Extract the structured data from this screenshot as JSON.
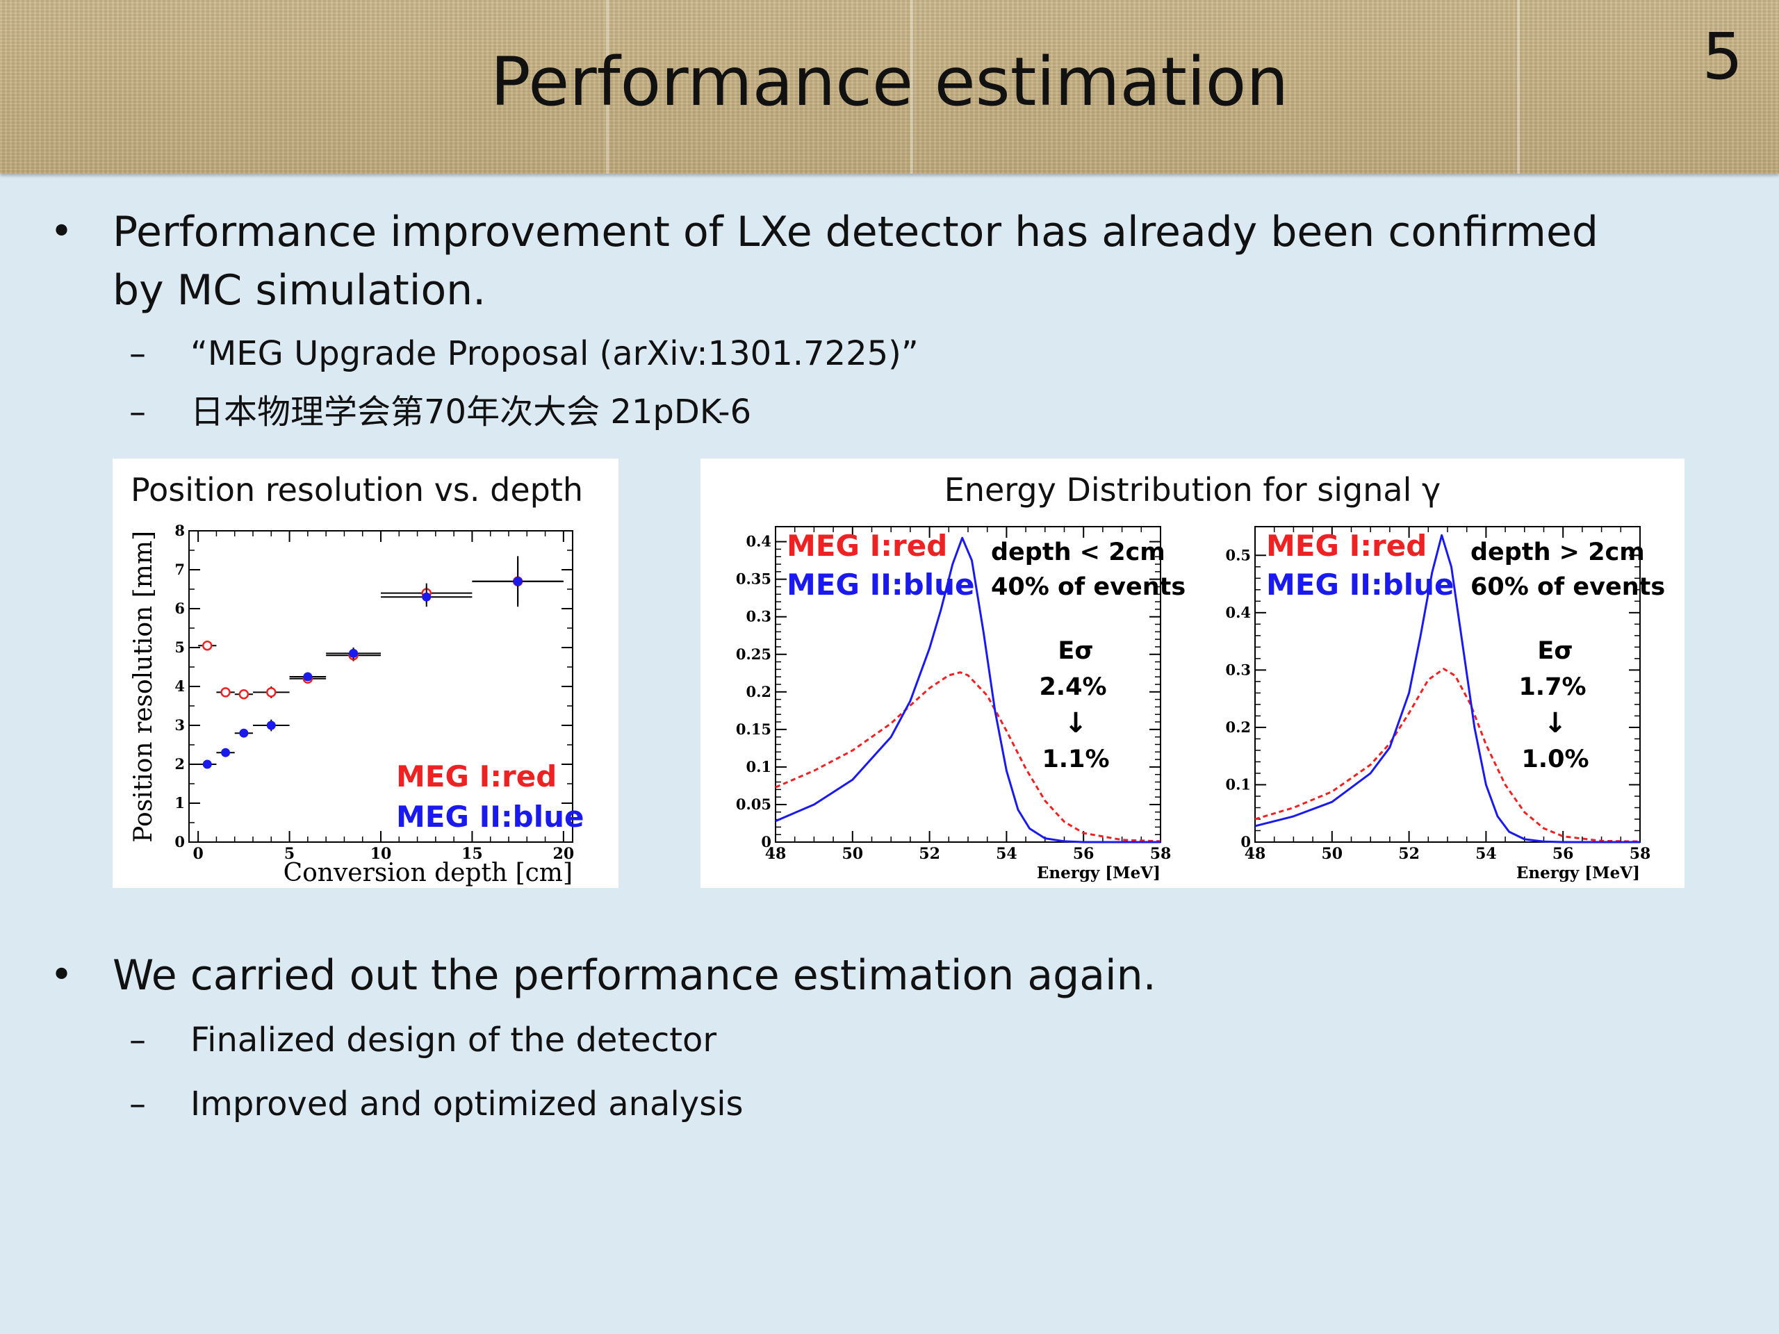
{
  "slide": {
    "title": "Performance estimation",
    "number": "5"
  },
  "bullets": [
    {
      "lines": [
        "Performance improvement of LXe detector has already been confirmed",
        "by MC simulation."
      ],
      "subs": [
        "“MEG Upgrade Proposal (arXiv:1301.7225)”",
        "日本物理学会第70年次大会 21pDK-6"
      ]
    },
    {
      "lines": [
        "We carried out the performance estimation again."
      ],
      "subs": [
        "Finalized design of the detector",
        "Improved and optimized analysis"
      ]
    }
  ],
  "colors": {
    "meg1": "#ee2222",
    "meg2": "#1a1aee",
    "header": "#c9b58a",
    "background": "#dbe9f2"
  },
  "panel_left_title": "Position resolution vs. depth",
  "panel_right_title": "Energy Distribution for signal γ",
  "chart_data": [
    {
      "type": "scatter",
      "title": "Position resolution vs. depth",
      "xlabel": "Conversion depth [cm]",
      "ylabel": "Position resolution [mm]",
      "xlim": [
        -0.5,
        20.5
      ],
      "ylim": [
        0,
        8
      ],
      "xticks": [
        0,
        5,
        10,
        15,
        20
      ],
      "yticks": [
        0,
        1,
        2,
        3,
        4,
        5,
        6,
        7,
        8
      ],
      "legend": [
        "MEG I:red",
        "MEG II:blue"
      ],
      "series": [
        {
          "name": "MEG I:red",
          "points": [
            {
              "x": 0.5,
              "y": 5.05,
              "xerr": 0.5,
              "yerr": 0.05
            },
            {
              "x": 1.5,
              "y": 3.85,
              "xerr": 0.5,
              "yerr": 0.05
            },
            {
              "x": 2.5,
              "y": 3.8,
              "xerr": 0.5,
              "yerr": 0.1
            },
            {
              "x": 4.0,
              "y": 3.85,
              "xerr": 1.0,
              "yerr": 0.15
            },
            {
              "x": 6.0,
              "y": 4.2,
              "xerr": 1.0,
              "yerr": 0.1
            },
            {
              "x": 8.5,
              "y": 4.8,
              "xerr": 1.5,
              "yerr": 0.15
            },
            {
              "x": 12.5,
              "y": 6.4,
              "xerr": 2.5,
              "yerr": 0.25
            },
            {
              "x": 17.5,
              "y": 6.7,
              "xerr": 2.5,
              "yerr": 0.6
            }
          ]
        },
        {
          "name": "MEG II:blue",
          "points": [
            {
              "x": 0.5,
              "y": 2.0,
              "xerr": 0.5,
              "yerr": 0.05
            },
            {
              "x": 1.5,
              "y": 2.3,
              "xerr": 0.5,
              "yerr": 0.05
            },
            {
              "x": 2.5,
              "y": 2.8,
              "xerr": 0.5,
              "yerr": 0.1
            },
            {
              "x": 4.0,
              "y": 3.0,
              "xerr": 1.0,
              "yerr": 0.15
            },
            {
              "x": 6.0,
              "y": 4.25,
              "xerr": 1.0,
              "yerr": 0.1
            },
            {
              "x": 8.5,
              "y": 4.85,
              "xerr": 1.5,
              "yerr": 0.15
            },
            {
              "x": 12.5,
              "y": 6.3,
              "xerr": 2.5,
              "yerr": 0.25
            },
            {
              "x": 17.5,
              "y": 6.7,
              "xerr": 2.5,
              "yerr": 0.65
            }
          ]
        }
      ]
    },
    {
      "type": "line",
      "xlabel": "Energy [MeV]",
      "xlim": [
        48,
        58
      ],
      "ylim": [
        0,
        0.42
      ],
      "xticks": [
        48,
        50,
        52,
        54,
        56,
        58
      ],
      "yticks": [
        0,
        0.05,
        0.1,
        0.15,
        0.2,
        0.25,
        0.3,
        0.35,
        0.4
      ],
      "legend": [
        "MEG I:red",
        "MEG II:blue"
      ],
      "annotation": [
        "depth < 2cm",
        "40% of events",
        "Eσ",
        "2.4%",
        "↓",
        "1.1%"
      ],
      "series": [
        {
          "name": "MEG I:red",
          "style": "dashed",
          "x": [
            48,
            49,
            50,
            51,
            51.5,
            52,
            52.5,
            52.8,
            53,
            53.5,
            54,
            54.5,
            55,
            55.5,
            56,
            57,
            58
          ],
          "y": [
            0.073,
            0.095,
            0.122,
            0.158,
            0.182,
            0.205,
            0.222,
            0.226,
            0.222,
            0.195,
            0.148,
            0.098,
            0.055,
            0.027,
            0.012,
            0.003,
            0.001
          ]
        },
        {
          "name": "MEG II:blue",
          "style": "solid",
          "x": [
            48,
            49,
            50,
            51,
            51.5,
            52,
            52.3,
            52.6,
            52.85,
            53.1,
            53.4,
            53.7,
            54,
            54.3,
            54.6,
            55,
            55.5,
            56,
            58
          ],
          "y": [
            0.028,
            0.05,
            0.083,
            0.14,
            0.188,
            0.258,
            0.31,
            0.37,
            0.405,
            0.375,
            0.28,
            0.175,
            0.095,
            0.043,
            0.018,
            0.005,
            0.001,
            0,
            0
          ]
        }
      ]
    },
    {
      "type": "line",
      "xlabel": "Energy [MeV]",
      "xlim": [
        48,
        58
      ],
      "ylim": [
        0,
        0.55
      ],
      "xticks": [
        48,
        50,
        52,
        54,
        56,
        58
      ],
      "yticks": [
        0,
        0.1,
        0.2,
        0.3,
        0.4,
        0.5
      ],
      "legend": [
        "MEG I:red",
        "MEG II:blue"
      ],
      "annotation": [
        "depth > 2cm",
        "60% of events",
        "Eσ",
        "1.7%",
        "↓",
        "1.0%"
      ],
      "series": [
        {
          "name": "MEG I:red",
          "style": "dashed",
          "x": [
            48,
            49,
            50,
            51,
            51.5,
            52,
            52.5,
            52.9,
            53.2,
            53.6,
            54,
            54.5,
            55,
            55.5,
            56,
            57,
            58
          ],
          "y": [
            0.04,
            0.06,
            0.088,
            0.135,
            0.172,
            0.225,
            0.283,
            0.302,
            0.29,
            0.24,
            0.17,
            0.1,
            0.052,
            0.024,
            0.01,
            0.002,
            0.001
          ]
        },
        {
          "name": "MEG II:blue",
          "style": "solid",
          "x": [
            48,
            49,
            50,
            51,
            51.5,
            52,
            52.3,
            52.6,
            52.85,
            53.1,
            53.4,
            53.7,
            54,
            54.3,
            54.6,
            55,
            55.5,
            56,
            58
          ],
          "y": [
            0.028,
            0.045,
            0.07,
            0.12,
            0.165,
            0.26,
            0.36,
            0.47,
            0.535,
            0.48,
            0.34,
            0.2,
            0.1,
            0.045,
            0.018,
            0.005,
            0.001,
            0,
            0
          ]
        }
      ]
    }
  ]
}
